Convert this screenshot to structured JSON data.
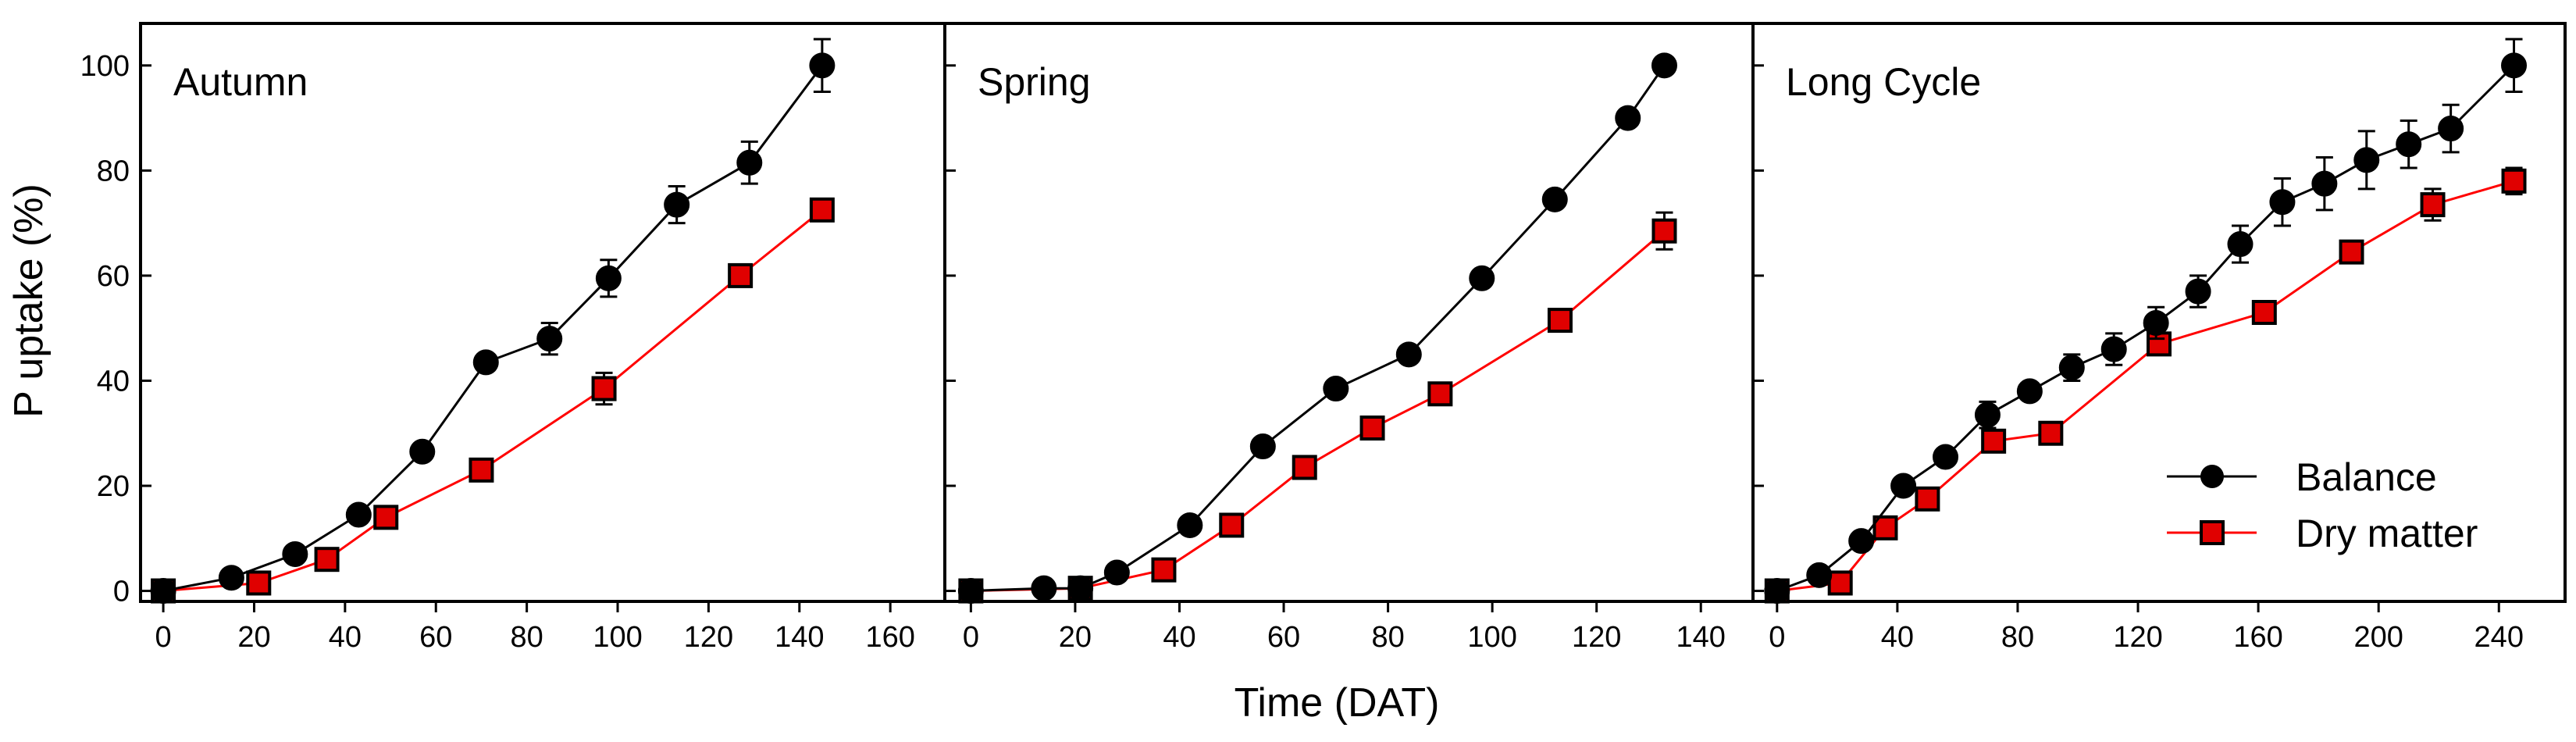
{
  "chart_data": {
    "type": "line",
    "ylabel": "P uptake (%)",
    "xlabel": "Time (DAT)",
    "ylim": [
      -2,
      108
    ],
    "yticks": [
      0,
      20,
      40,
      60,
      80,
      100
    ],
    "colors": {
      "balance": "#000000",
      "dry_matter": "#ff0000",
      "marker_fill_red": "#e00000"
    },
    "legend": {
      "position": "lower-right of Long Cycle panel",
      "entries": [
        {
          "name": "Balance",
          "marker": "circle",
          "color": "#000000"
        },
        {
          "name": "Dry matter",
          "marker": "square",
          "color": "#ff0000"
        }
      ]
    },
    "panels": [
      {
        "title": "Autumn",
        "xlim": [
          -5,
          172
        ],
        "xticks": [
          0,
          20,
          40,
          60,
          80,
          100,
          120,
          140,
          160
        ],
        "series": [
          {
            "name": "Balance",
            "x": [
              0,
              15,
              29,
              43,
              57,
              71,
              85,
              98,
              113,
              129,
              145
            ],
            "y": [
              0,
              2.5,
              7,
              14.5,
              26.5,
              43.5,
              48,
              59.5,
              73.5,
              81.5,
              100
            ],
            "err": [
              0,
              0,
              0,
              0,
              0,
              0,
              3,
              3.5,
              3.5,
              4,
              5
            ]
          },
          {
            "name": "Dry matter",
            "x": [
              0,
              21,
              36,
              49,
              70,
              97,
              127,
              145
            ],
            "y": [
              0,
              1.5,
              6,
              14,
              23,
              38.5,
              60,
              72.5
            ],
            "err": [
              0,
              0,
              0,
              0,
              0,
              3,
              0,
              0
            ]
          }
        ]
      },
      {
        "title": "Spring",
        "xlim": [
          -5,
          150
        ],
        "xticks": [
          0,
          20,
          40,
          60,
          80,
          100,
          120,
          140
        ],
        "series": [
          {
            "name": "Balance",
            "x": [
              0,
              14,
              21,
              28,
              42,
              56,
              70,
              84,
              98,
              112,
              126,
              133
            ],
            "y": [
              0,
              0.5,
              0.5,
              3.5,
              12.5,
              27.5,
              38.5,
              45,
              59.5,
              74.5,
              90,
              100
            ],
            "err": [
              0,
              0,
              0,
              0,
              0,
              0,
              0,
              0,
              0,
              0,
              0,
              0
            ]
          },
          {
            "name": "Dry matter",
            "x": [
              0,
              21,
              37,
              50,
              64,
              77,
              90,
              113,
              133
            ],
            "y": [
              0,
              0.5,
              4,
              12.5,
              23.5,
              31,
              37.5,
              51.5,
              68.5
            ],
            "err": [
              0,
              0,
              0,
              0,
              0,
              0,
              0,
              0,
              3.5
            ]
          }
        ]
      },
      {
        "title": "Long Cycle",
        "xlim": [
          -8,
          262
        ],
        "xticks": [
          0,
          40,
          80,
          120,
          160,
          200,
          240
        ],
        "series": [
          {
            "name": "Balance",
            "x": [
              0,
              14,
              28,
              42,
              56,
              70,
              84,
              98,
              112,
              126,
              140,
              154,
              168,
              182,
              196,
              210,
              224,
              245
            ],
            "y": [
              0,
              3,
              9.5,
              20,
              25.5,
              33.5,
              38,
              42.5,
              46,
              51,
              57,
              66,
              74,
              77.5,
              82,
              85,
              88,
              100
            ],
            "err": [
              0,
              0,
              0,
              0,
              0,
              2.5,
              0,
              2.5,
              3,
              3,
              3,
              3.5,
              4.5,
              5,
              5.5,
              4.5,
              4.5,
              5
            ]
          },
          {
            "name": "Dry matter",
            "x": [
              0,
              21,
              36,
              50,
              72,
              91,
              127,
              162,
              191,
              218,
              245
            ],
            "y": [
              0,
              1.5,
              12,
              17.5,
              28.5,
              30,
              47,
              53,
              64.5,
              73.5,
              78
            ],
            "err": [
              0,
              0,
              0,
              0,
              2,
              0,
              0,
              0,
              0,
              3,
              2.5
            ]
          }
        ]
      }
    ]
  }
}
